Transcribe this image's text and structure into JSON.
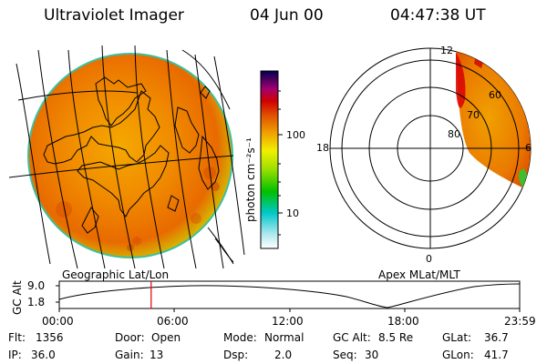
{
  "header": {
    "instrument": "Ultraviolet Imager",
    "date": "04 Jun 00",
    "time": "04:47:38 UT"
  },
  "colorbar": {
    "unit_label": "photon cm⁻²s⁻¹",
    "ticks": [
      "100",
      "10"
    ]
  },
  "panels": {
    "left_caption": "Geographic Lat/Lon",
    "right_caption": "Apex MLat/MLT"
  },
  "polar_plot": {
    "mlt_labels": [
      "12",
      "18",
      "6",
      "0"
    ],
    "mlat_labels": [
      "60",
      "70",
      "80"
    ]
  },
  "altitude_plot": {
    "y_label": "GC Alt",
    "y_ticks": [
      "9.0",
      "1.8"
    ],
    "x_ticks": [
      "00:00",
      "06:00",
      "12:00",
      "18:00",
      "23:59"
    ],
    "marker_time_hours": 4.79,
    "marker_color": "#e00000"
  },
  "info": {
    "row1": [
      {
        "label": "Flt:",
        "value": "1356"
      },
      {
        "label": "Door:",
        "value": "Open"
      },
      {
        "label": "Mode:",
        "value": "Normal"
      },
      {
        "label": "GC Alt:",
        "value": "8.5 Re"
      },
      {
        "label": "GLat:",
        "value": "36.7"
      }
    ],
    "row2": [
      {
        "label": "IP:",
        "value": "36.0"
      },
      {
        "label": "Gain:",
        "value": "13"
      },
      {
        "label": "Dsp:",
        "value": "2.0"
      },
      {
        "label": "Seq:",
        "value": "30"
      },
      {
        "label": "GLon:",
        "value": "41.7"
      }
    ]
  }
}
